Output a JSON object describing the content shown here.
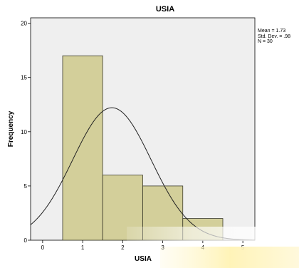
{
  "stats": {
    "mean": "Mean = 1.73",
    "std_dev": "Std. Dev. = .98",
    "n": "N = 30"
  },
  "chart_data": {
    "type": "bar",
    "title": "USIA",
    "xlabel": "USIA",
    "ylabel": "Frequency",
    "xlim": [
      -0.3,
      5.3
    ],
    "ylim": [
      0,
      20.5
    ],
    "x_ticks": [
      0,
      1,
      2,
      3,
      4,
      5
    ],
    "y_ticks": [
      0,
      5,
      10,
      15,
      20
    ],
    "bins": [
      {
        "x0": 0.5,
        "x1": 1.5,
        "value": 17
      },
      {
        "x0": 1.5,
        "x1": 2.5,
        "value": 6
      },
      {
        "x0": 2.5,
        "x1": 3.5,
        "value": 5
      },
      {
        "x0": 3.5,
        "x1": 4.5,
        "value": 2
      }
    ],
    "normal_curve": {
      "mean": 1.73,
      "std_dev": 0.98,
      "n": 30,
      "bin_width": 1
    },
    "grid": false,
    "colors": {
      "plot_background": "#efefef",
      "bar_fill": "#d3cf9a",
      "bar_stroke": "#3a3a2a",
      "curve": "#222222"
    }
  }
}
